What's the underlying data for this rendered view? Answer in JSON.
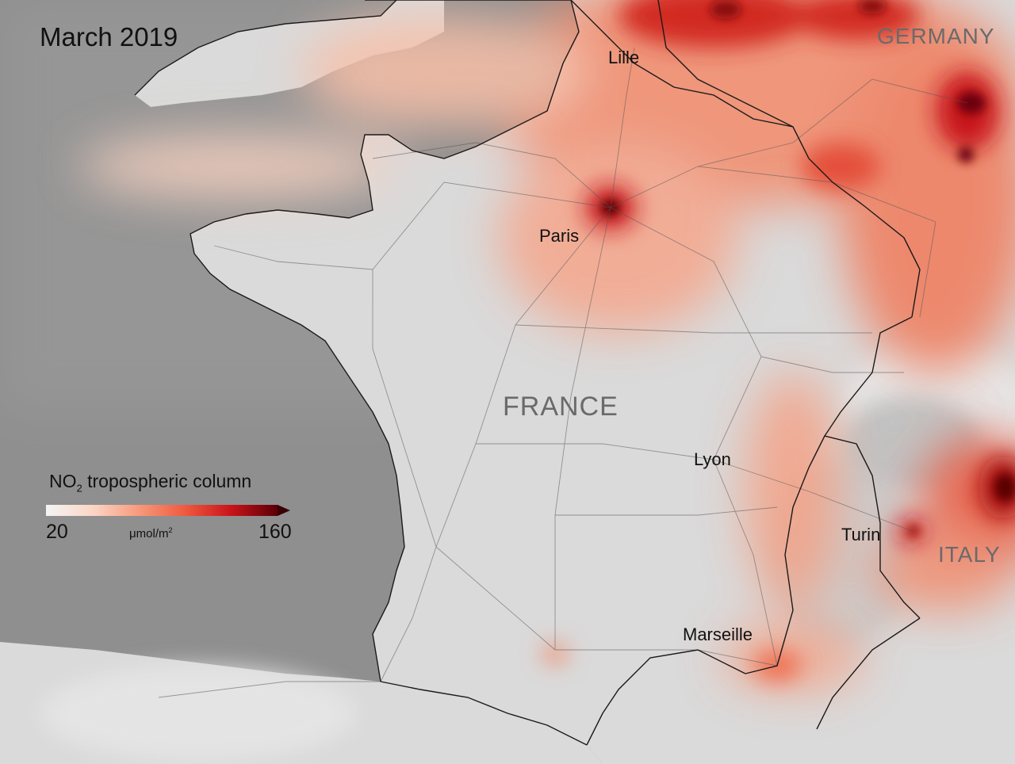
{
  "title": "March 2019",
  "legend": {
    "title_main": "NO",
    "title_sub": "2",
    "title_rest": " tropospheric column",
    "min": "20",
    "max": "160",
    "unit_main": "μmol/m",
    "unit_sup": "2",
    "colors": [
      "#f4f4f4",
      "#fbd6c6",
      "#f79a7c",
      "#ef5a3e",
      "#c8141a",
      "#7a0008",
      "#3a0004"
    ]
  },
  "labels": {
    "lille": "Lille",
    "paris": "Paris",
    "lyon": "Lyon",
    "turin": "Turin",
    "marseille": "Marseille",
    "france": "FRANCE",
    "germany": "GERMANY",
    "italy": "ITALY"
  },
  "colors": {
    "sea": "#8f8f8f",
    "land": "#d9d9d9",
    "border": "#1a1a1a",
    "roads": "#555555"
  }
}
